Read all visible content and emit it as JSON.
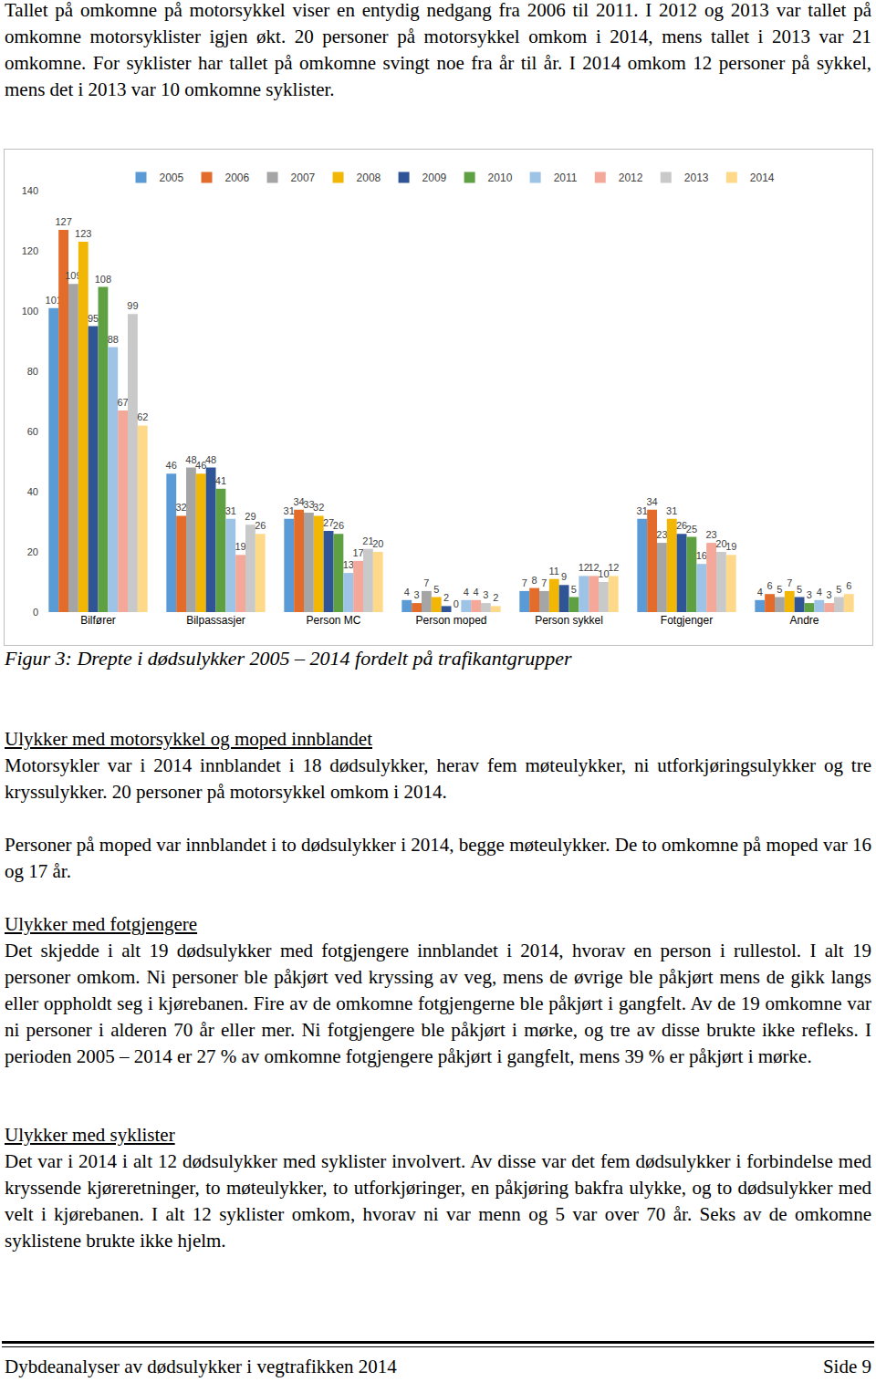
{
  "intro": "Tallet på omkomne på motorsykkel viser en entydig nedgang fra 2006 til 2011. I 2012 og 2013 var tallet på omkomne motorsyklister igjen økt. 20 personer på motorsykkel omkom i 2014, mens tallet i 2013 var 21 omkomne. For syklister har tallet på omkomne svingt noe fra år til år. I 2014 omkom 12 personer på sykkel, mens det i 2013 var 10 omkomne syklister.",
  "chart_data": {
    "type": "bar",
    "categories": [
      "Bilfører",
      "Bilpassasjer",
      "Person MC",
      "Person moped",
      "Person sykkel",
      "Fotgjenger",
      "Andre"
    ],
    "series": [
      {
        "name": "2005",
        "color": "#5B9BD5",
        "values": [
          101,
          46,
          31,
          4,
          7,
          31,
          4
        ]
      },
      {
        "name": "2006",
        "color": "#E46C2A",
        "values": [
          127,
          32,
          34,
          3,
          8,
          34,
          6
        ]
      },
      {
        "name": "2007",
        "color": "#A5A5A5",
        "values": [
          109,
          48,
          33,
          7,
          7,
          23,
          5
        ]
      },
      {
        "name": "2008",
        "color": "#F2B705",
        "values": [
          123,
          46,
          32,
          5,
          11,
          31,
          7
        ]
      },
      {
        "name": "2009",
        "color": "#2F5597",
        "values": [
          95,
          48,
          27,
          2,
          9,
          26,
          5
        ]
      },
      {
        "name": "2010",
        "color": "#5FA043",
        "values": [
          108,
          41,
          26,
          0,
          5,
          25,
          3
        ]
      },
      {
        "name": "2011",
        "color": "#9DC3E6",
        "values": [
          88,
          31,
          13,
          4,
          12,
          16,
          4
        ]
      },
      {
        "name": "2012",
        "color": "#F4A89A",
        "values": [
          67,
          19,
          17,
          4,
          12,
          23,
          3
        ]
      },
      {
        "name": "2013",
        "color": "#C9C9C9",
        "values": [
          99,
          29,
          21,
          3,
          10,
          20,
          5
        ]
      },
      {
        "name": "2014",
        "color": "#FFD98A",
        "values": [
          62,
          26,
          20,
          2,
          12,
          19,
          6
        ]
      }
    ],
    "ylim": [
      0,
      140
    ],
    "yticks": [
      0,
      20,
      40,
      60,
      80,
      100,
      120,
      140
    ],
    "grid": false,
    "legend": "top",
    "data_labels": true
  },
  "caption": "Figur 3: Drepte i dødsulykker 2005 – 2014 fordelt på trafikantgrupper",
  "sections": [
    {
      "heading": "Ulykker med motorsykkel og moped innblandet",
      "paragraphs": [
        "Motorsykler var i 2014 innblandet i 18 dødsulykker, herav fem møteulykker, ni utforkjøringsulykker og tre kryssulykker. 20 personer på motorsykkel omkom i 2014.",
        "Personer på moped var innblandet i to dødsulykker i 2014, begge møteulykker. De to omkomne på moped var 16 og 17 år."
      ]
    },
    {
      "heading": "Ulykker med fotgjengere",
      "paragraphs": [
        "Det skjedde i alt 19 dødsulykker med fotgjengere innblandet i 2014, hvorav en person i rullestol. I alt 19 personer omkom. Ni personer ble påkjørt ved kryssing av veg, mens de øvrige ble påkjørt mens de gikk langs eller oppholdt seg i kjørebanen. Fire av de omkomne fotgjengerne ble påkjørt i gangfelt. Av de 19 omkomne var ni personer i alderen 70 år eller mer. Ni fotgjengere ble påkjørt i mørke, og tre av disse brukte ikke refleks. I perioden 2005 – 2014 er 27 % av omkomne fotgjengere påkjørt i gangfelt, mens 39 % er påkjørt i mørke."
      ]
    },
    {
      "heading": "Ulykker med syklister",
      "paragraphs": [
        "Det var i 2014 i alt 12 dødsulykker med syklister involvert. Av disse var det fem dødsulykker i forbindelse med kryssende kjøreretninger, to møteulykker, to utforkjøringer, en påkjøring bakfra ulykke, og to dødsulykker med velt i kjørebanen. I alt 12 syklister omkom, hvorav ni var menn og 5 var over 70 år. Seks av de omkomne syklistene brukte ikke hjelm."
      ]
    }
  ],
  "footer": {
    "left": "Dybdeanalyser av dødsulykker i vegtrafikken 2014",
    "right": "Side 9"
  }
}
